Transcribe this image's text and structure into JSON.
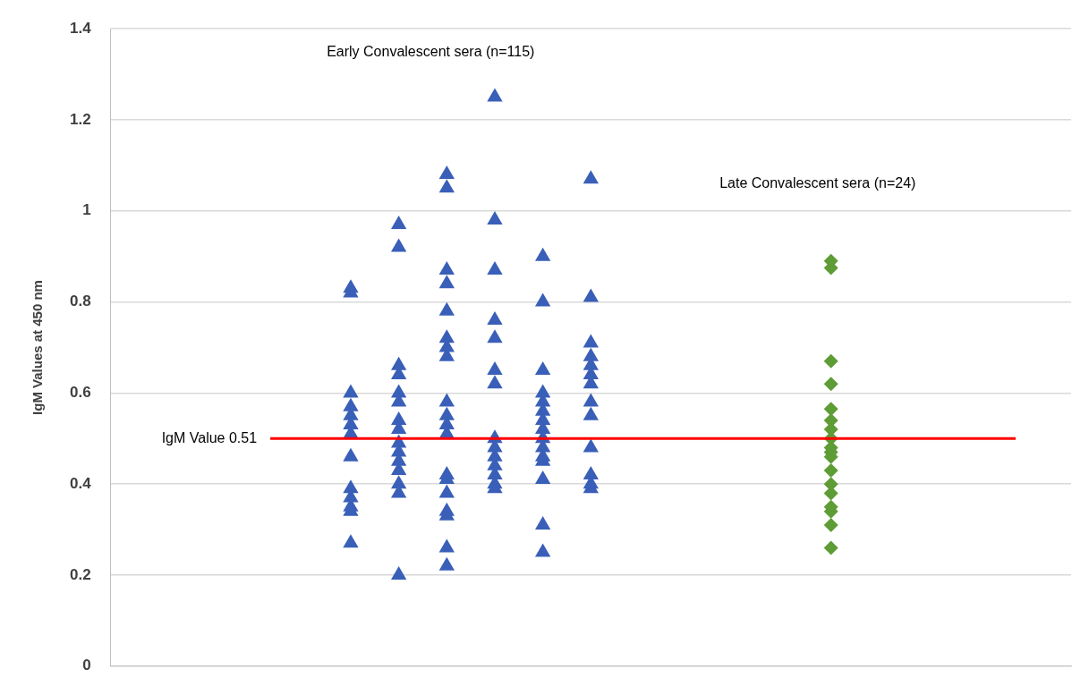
{
  "chart_data": {
    "type": "scatter",
    "ylabel": "IgM Values at 450 nm",
    "categories": [
      null,
      null,
      null,
      null,
      null,
      null,
      null,
      null,
      null,
      null,
      null,
      null,
      null,
      null,
      null,
      null,
      null,
      null,
      null,
      null,
      null
    ],
    "ylim": [
      0,
      1.4
    ],
    "yticks": [
      0,
      0.2,
      0.4,
      0.6,
      0.8,
      1,
      1.2,
      1.4
    ],
    "grid": "y",
    "tick_labels": "y",
    "legend": false,
    "annotations": [
      "Early Convalescent sera (n=115)",
      "Late Convalescent sera (n=24)"
    ],
    "ref_lines": [
      {
        "axis": "y",
        "value": 0.5,
        "label": "IgM Value 0.51",
        "color": "#ff0000"
      }
    ],
    "series": [
      {
        "color": "#3a5fb8",
        "marker": "triangle",
        "values": [
          null,
          null,
          null,
          null,
          null,
          0.83,
          0.97,
          1.08,
          1.25,
          0.9,
          1.07,
          null,
          null,
          null,
          null,
          null,
          null,
          null,
          null,
          null,
          null
        ]
      },
      {
        "color": "#3a5fb8",
        "marker": "triangle",
        "values": [
          null,
          null,
          null,
          null,
          null,
          0.82,
          0.92,
          1.05,
          0.98,
          0.8,
          0.81,
          null,
          null,
          null,
          null,
          null,
          null,
          null,
          null,
          null,
          null
        ]
      },
      {
        "color": "#3a5fb8",
        "marker": "triangle",
        "values": [
          null,
          null,
          null,
          null,
          null,
          0.6,
          0.66,
          0.87,
          0.87,
          0.65,
          0.71,
          null,
          null,
          null,
          null,
          null,
          null,
          null,
          null,
          null,
          null
        ]
      },
      {
        "color": "#3a5fb8",
        "marker": "triangle",
        "values": [
          null,
          null,
          null,
          null,
          null,
          0.57,
          0.64,
          0.84,
          0.76,
          0.6,
          0.68,
          null,
          null,
          null,
          null,
          null,
          null,
          null,
          null,
          null,
          null
        ]
      },
      {
        "color": "#3a5fb8",
        "marker": "triangle",
        "values": [
          null,
          null,
          null,
          null,
          null,
          0.55,
          0.6,
          0.78,
          0.72,
          0.58,
          0.66,
          null,
          null,
          null,
          null,
          null,
          null,
          null,
          null,
          null,
          null
        ]
      },
      {
        "color": "#3a5fb8",
        "marker": "triangle",
        "values": [
          null,
          null,
          null,
          null,
          null,
          0.53,
          0.58,
          0.72,
          0.65,
          0.56,
          0.64,
          null,
          null,
          null,
          null,
          null,
          null,
          null,
          null,
          null,
          null
        ]
      },
      {
        "color": "#3a5fb8",
        "marker": "triangle",
        "values": [
          null,
          null,
          null,
          null,
          null,
          0.51,
          0.54,
          0.7,
          0.62,
          0.54,
          0.62,
          null,
          null,
          null,
          null,
          null,
          null,
          null,
          null,
          null,
          null
        ]
      },
      {
        "color": "#3a5fb8",
        "marker": "triangle",
        "values": [
          null,
          null,
          null,
          null,
          null,
          0.46,
          0.52,
          0.68,
          0.5,
          0.52,
          0.58,
          null,
          null,
          null,
          null,
          null,
          null,
          null,
          null,
          null,
          null
        ]
      },
      {
        "color": "#3a5fb8",
        "marker": "triangle",
        "values": [
          null,
          null,
          null,
          null,
          null,
          0.39,
          0.49,
          0.58,
          0.48,
          0.5,
          0.55,
          null,
          null,
          null,
          null,
          null,
          null,
          null,
          null,
          null,
          null
        ]
      },
      {
        "color": "#3a5fb8",
        "marker": "triangle",
        "values": [
          null,
          null,
          null,
          null,
          null,
          0.37,
          0.47,
          0.55,
          0.46,
          0.48,
          0.48,
          null,
          null,
          null,
          null,
          null,
          null,
          null,
          null,
          null,
          null
        ]
      },
      {
        "color": "#3a5fb8",
        "marker": "triangle",
        "values": [
          null,
          null,
          null,
          null,
          null,
          0.35,
          0.45,
          0.53,
          0.44,
          0.46,
          0.42,
          null,
          null,
          null,
          null,
          null,
          null,
          null,
          null,
          null,
          null
        ]
      },
      {
        "color": "#3a5fb8",
        "marker": "triangle",
        "values": [
          null,
          null,
          null,
          null,
          null,
          0.34,
          0.43,
          0.51,
          0.42,
          0.45,
          0.4,
          null,
          null,
          null,
          null,
          null,
          null,
          null,
          null,
          null,
          null
        ]
      },
      {
        "color": "#3a5fb8",
        "marker": "triangle",
        "values": [
          null,
          null,
          null,
          null,
          null,
          0.27,
          0.4,
          0.42,
          0.4,
          0.41,
          0.39,
          null,
          null,
          null,
          null,
          null,
          null,
          null,
          null,
          null,
          null
        ]
      },
      {
        "color": "#3a5fb8",
        "marker": "triangle",
        "values": [
          null,
          null,
          null,
          null,
          null,
          null,
          0.38,
          0.41,
          0.39,
          0.31,
          null,
          null,
          null,
          null,
          null,
          null,
          null,
          null,
          null,
          null,
          null
        ]
      },
      {
        "color": "#3a5fb8",
        "marker": "triangle",
        "values": [
          null,
          null,
          null,
          null,
          null,
          null,
          0.2,
          0.38,
          null,
          0.25,
          null,
          null,
          null,
          null,
          null,
          null,
          null,
          null,
          null,
          null,
          null
        ]
      },
      {
        "color": "#3a5fb8",
        "marker": "triangle",
        "values": [
          null,
          null,
          null,
          null,
          null,
          null,
          null,
          0.34,
          null,
          null,
          null,
          null,
          null,
          null,
          null,
          null,
          null,
          null,
          null,
          null,
          null
        ]
      },
      {
        "color": "#3a5fb8",
        "marker": "triangle",
        "values": [
          null,
          null,
          null,
          null,
          null,
          null,
          null,
          0.33,
          null,
          null,
          null,
          null,
          null,
          null,
          null,
          null,
          null,
          null,
          null,
          null,
          null
        ]
      },
      {
        "color": "#3a5fb8",
        "marker": "triangle",
        "values": [
          null,
          null,
          null,
          null,
          null,
          null,
          null,
          0.26,
          null,
          null,
          null,
          null,
          null,
          null,
          null,
          null,
          null,
          null,
          null,
          null,
          null
        ]
      },
      {
        "color": "#3a5fb8",
        "marker": "triangle",
        "values": [
          null,
          null,
          null,
          null,
          null,
          null,
          null,
          0.22,
          null,
          null,
          null,
          null,
          null,
          null,
          null,
          null,
          null,
          null,
          null,
          null,
          null
        ]
      },
      {
        "color": "#5e9c36",
        "marker": "diamond",
        "values": [
          null,
          null,
          null,
          null,
          null,
          null,
          null,
          null,
          null,
          null,
          null,
          null,
          null,
          null,
          null,
          0.89,
          null,
          null,
          null,
          null,
          null
        ]
      },
      {
        "color": "#5e9c36",
        "marker": "diamond",
        "values": [
          null,
          null,
          null,
          null,
          null,
          null,
          null,
          null,
          null,
          null,
          null,
          null,
          null,
          null,
          null,
          0.875,
          null,
          null,
          null,
          null,
          null
        ]
      },
      {
        "color": "#5e9c36",
        "marker": "diamond",
        "values": [
          null,
          null,
          null,
          null,
          null,
          null,
          null,
          null,
          null,
          null,
          null,
          null,
          null,
          null,
          null,
          0.67,
          null,
          null,
          null,
          null,
          null
        ]
      },
      {
        "color": "#5e9c36",
        "marker": "diamond",
        "values": [
          null,
          null,
          null,
          null,
          null,
          null,
          null,
          null,
          null,
          null,
          null,
          null,
          null,
          null,
          null,
          0.62,
          null,
          null,
          null,
          null,
          null
        ]
      },
      {
        "color": "#5e9c36",
        "marker": "diamond",
        "values": [
          null,
          null,
          null,
          null,
          null,
          null,
          null,
          null,
          null,
          null,
          null,
          null,
          null,
          null,
          null,
          0.565,
          null,
          null,
          null,
          null,
          null
        ]
      },
      {
        "color": "#5e9c36",
        "marker": "diamond",
        "values": [
          null,
          null,
          null,
          null,
          null,
          null,
          null,
          null,
          null,
          null,
          null,
          null,
          null,
          null,
          null,
          0.54,
          null,
          null,
          null,
          null,
          null
        ]
      },
      {
        "color": "#5e9c36",
        "marker": "diamond",
        "values": [
          null,
          null,
          null,
          null,
          null,
          null,
          null,
          null,
          null,
          null,
          null,
          null,
          null,
          null,
          null,
          0.52,
          null,
          null,
          null,
          null,
          null
        ]
      },
      {
        "color": "#5e9c36",
        "marker": "diamond",
        "values": [
          null,
          null,
          null,
          null,
          null,
          null,
          null,
          null,
          null,
          null,
          null,
          null,
          null,
          null,
          null,
          0.5,
          null,
          null,
          null,
          null,
          null
        ]
      },
      {
        "color": "#5e9c36",
        "marker": "diamond",
        "values": [
          null,
          null,
          null,
          null,
          null,
          null,
          null,
          null,
          null,
          null,
          null,
          null,
          null,
          null,
          null,
          0.48,
          null,
          null,
          null,
          null,
          null
        ]
      },
      {
        "color": "#5e9c36",
        "marker": "diamond",
        "values": [
          null,
          null,
          null,
          null,
          null,
          null,
          null,
          null,
          null,
          null,
          null,
          null,
          null,
          null,
          null,
          0.47,
          null,
          null,
          null,
          null,
          null
        ]
      },
      {
        "color": "#5e9c36",
        "marker": "diamond",
        "values": [
          null,
          null,
          null,
          null,
          null,
          null,
          null,
          null,
          null,
          null,
          null,
          null,
          null,
          null,
          null,
          0.46,
          null,
          null,
          null,
          null,
          null
        ]
      },
      {
        "color": "#5e9c36",
        "marker": "diamond",
        "values": [
          null,
          null,
          null,
          null,
          null,
          null,
          null,
          null,
          null,
          null,
          null,
          null,
          null,
          null,
          null,
          null,
          null,
          null,
          null,
          null,
          null
        ]
      },
      {
        "color": "#5e9c36",
        "marker": "diamond",
        "values": [
          null,
          null,
          null,
          null,
          null,
          null,
          null,
          null,
          null,
          null,
          null,
          null,
          null,
          null,
          null,
          0.43,
          null,
          null,
          null,
          null,
          null
        ]
      },
      {
        "color": "#5e9c36",
        "marker": "diamond",
        "values": [
          null,
          null,
          null,
          null,
          null,
          null,
          null,
          null,
          null,
          null,
          null,
          null,
          null,
          null,
          null,
          0.4,
          null,
          null,
          null,
          null,
          null
        ]
      },
      {
        "color": "#5e9c36",
        "marker": "diamond",
        "values": [
          null,
          null,
          null,
          null,
          null,
          null,
          null,
          null,
          null,
          null,
          null,
          null,
          null,
          null,
          null,
          0.38,
          null,
          null,
          null,
          null,
          null
        ]
      },
      {
        "color": "#5e9c36",
        "marker": "diamond",
        "values": [
          null,
          null,
          null,
          null,
          null,
          null,
          null,
          null,
          null,
          null,
          null,
          null,
          null,
          null,
          null,
          0.35,
          null,
          null,
          null,
          null,
          null
        ]
      },
      {
        "color": "#5e9c36",
        "marker": "diamond",
        "values": [
          null,
          null,
          null,
          null,
          null,
          null,
          null,
          null,
          null,
          null,
          null,
          null,
          null,
          null,
          null,
          0.34,
          null,
          null,
          null,
          null,
          null
        ]
      },
      {
        "color": "#5e9c36",
        "marker": "diamond",
        "values": [
          null,
          null,
          null,
          null,
          null,
          null,
          null,
          null,
          null,
          null,
          null,
          null,
          null,
          null,
          null,
          0.31,
          null,
          null,
          null,
          null,
          null
        ]
      },
      {
        "color": "#5e9c36",
        "marker": "diamond",
        "values": [
          null,
          null,
          null,
          null,
          null,
          null,
          null,
          null,
          null,
          null,
          null,
          null,
          null,
          null,
          null,
          0.26,
          null,
          null,
          null,
          null,
          null
        ]
      }
    ]
  }
}
